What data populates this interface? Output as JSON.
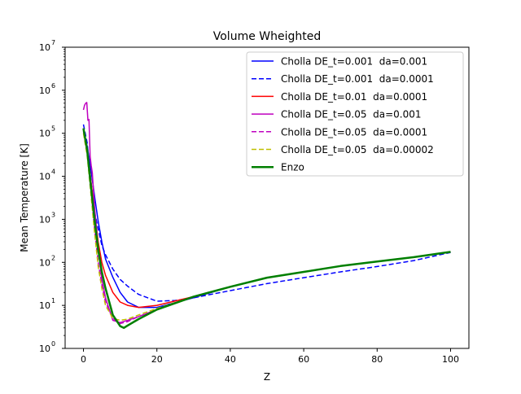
{
  "chart_data": {
    "type": "line",
    "title": "Volume Wheighted",
    "xlabel": "Z",
    "ylabel": "Mean Temperature  [K]",
    "xlim": [
      -5,
      105
    ],
    "ylim": [
      1,
      10000000
    ],
    "yscale": "log",
    "xticks": [
      0,
      20,
      40,
      60,
      80,
      100
    ],
    "xtick_labels": [
      "0",
      "20",
      "40",
      "60",
      "80",
      "100"
    ],
    "yticks": [
      1,
      10,
      100,
      1000,
      10000,
      100000,
      1000000,
      10000000
    ],
    "ytick_labels": [
      {
        "base": "10",
        "exp": "0"
      },
      {
        "base": "10",
        "exp": "1"
      },
      {
        "base": "10",
        "exp": "2"
      },
      {
        "base": "10",
        "exp": "3"
      },
      {
        "base": "10",
        "exp": "4"
      },
      {
        "base": "10",
        "exp": "5"
      },
      {
        "base": "10",
        "exp": "6"
      },
      {
        "base": "10",
        "exp": "7"
      }
    ],
    "grid": false,
    "legend_position": "upper-right",
    "series": [
      {
        "name": "Cholla DE_t=0.001  da=0.001",
        "color": "#0000ff",
        "dash": "solid",
        "x": [
          0,
          1,
          2,
          3,
          4,
          5,
          6,
          8,
          10,
          12,
          15,
          20,
          30,
          40,
          50,
          60,
          70,
          80,
          90,
          100
        ],
        "y": [
          120000,
          50000,
          15000,
          3500,
          900,
          300,
          120,
          45,
          20,
          12,
          9,
          9,
          15,
          27,
          44,
          60,
          82,
          105,
          132,
          175
        ]
      },
      {
        "name": "Cholla DE_t=0.001  da=0.0001",
        "color": "#0000ff",
        "dash": "dashed",
        "x": [
          0,
          1,
          2,
          3,
          4,
          5,
          6,
          8,
          10,
          12,
          15,
          20,
          25,
          30,
          40,
          50,
          60,
          70,
          80,
          90,
          100
        ],
        "y": [
          160000,
          60000,
          8000,
          1500,
          600,
          250,
          150,
          70,
          40,
          28,
          18,
          12.5,
          13,
          15,
          22,
          32,
          44,
          60,
          80,
          110,
          170
        ]
      },
      {
        "name": "Cholla DE_t=0.01  da=0.0001",
        "color": "#ff0000",
        "dash": "solid",
        "x": [
          0,
          1,
          2,
          3,
          4,
          5,
          6,
          8,
          10,
          12,
          15,
          20,
          30,
          40,
          50,
          60,
          70,
          80,
          90,
          100
        ],
        "y": [
          130000,
          45000,
          8000,
          1500,
          300,
          100,
          50,
          20,
          12,
          10,
          9,
          10,
          16,
          27,
          44,
          60,
          82,
          105,
          132,
          175
        ]
      },
      {
        "name": "Cholla DE_t=0.05  da=0.001",
        "color": "#bf00bf",
        "dash": "solid",
        "x": [
          0,
          0.3,
          0.6,
          0.9,
          1.2,
          1.5,
          1.8,
          2.1,
          2.4,
          3,
          4,
          5,
          6,
          8,
          10,
          12,
          15,
          20,
          30,
          40,
          50,
          60,
          70,
          80,
          90,
          100
        ],
        "y": [
          350000,
          450000,
          500000,
          520000,
          200000,
          210000,
          30000,
          18000,
          12000,
          2000,
          200,
          40,
          15,
          4.5,
          4,
          4.5,
          5.5,
          8,
          16,
          27,
          44,
          60,
          82,
          105,
          132,
          175
        ]
      },
      {
        "name": "Cholla DE_t=0.05  da=0.0001",
        "color": "#bf00bf",
        "dash": "dashed",
        "x": [
          0,
          1,
          2,
          3,
          4,
          5,
          6,
          8,
          10,
          12,
          15,
          20,
          30,
          40,
          50,
          60,
          70,
          80,
          90,
          100
        ],
        "y": [
          110000,
          35000,
          5000,
          600,
          100,
          30,
          12,
          5,
          3.8,
          4.2,
          5.5,
          8,
          16,
          27,
          44,
          60,
          82,
          105,
          132,
          175
        ]
      },
      {
        "name": "Cholla DE_t=0.05  da=0.00002",
        "color": "#bfbf00",
        "dash": "dashed",
        "x": [
          0,
          1,
          2,
          3,
          4,
          5,
          6,
          8,
          10,
          12,
          15,
          20,
          30,
          40,
          50,
          60,
          70,
          80,
          90,
          100
        ],
        "y": [
          100000,
          30000,
          4000,
          500,
          80,
          25,
          10,
          5,
          4.5,
          4.8,
          6,
          8.5,
          16,
          27,
          44,
          60,
          82,
          105,
          132,
          175
        ]
      },
      {
        "name": "Enzo",
        "color": "#007f00",
        "dash": "solid",
        "thick": true,
        "x": [
          0,
          1,
          2,
          3,
          4,
          5,
          6,
          8,
          10,
          11,
          12,
          15,
          20,
          30,
          40,
          50,
          60,
          70,
          80,
          90,
          100
        ],
        "y": [
          130000,
          40000,
          6000,
          1000,
          200,
          60,
          25,
          6,
          3.3,
          3,
          3.4,
          4.8,
          8,
          16,
          27,
          44,
          60,
          82,
          105,
          132,
          175
        ]
      }
    ]
  }
}
